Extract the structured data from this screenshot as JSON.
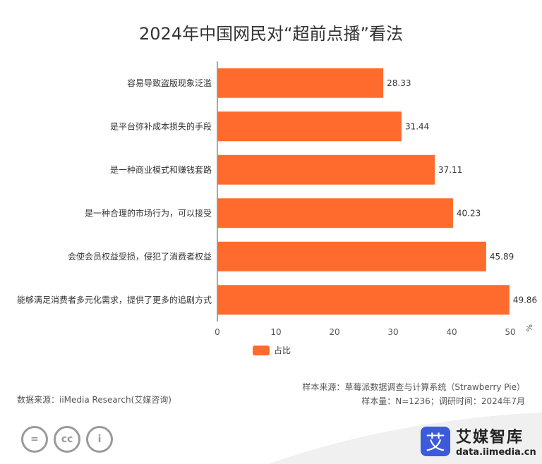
{
  "chart_data": {
    "type": "bar",
    "orientation": "horizontal",
    "title": "2024年中国网民对“超前点播”看法",
    "categories": [
      "容易导致盗版现象泛滥",
      "是平台弥补成本损失的手段",
      "是一种商业模式和赚钱套路",
      "是一种合理的市场行为，可以接受",
      "会使会员权益受损，侵犯了消费者权益",
      "能够满足消费者多元化需求，提供了更多的追剧方式"
    ],
    "series": [
      {
        "name": "占比",
        "values": [
          28.33,
          31.44,
          37.11,
          40.23,
          45.89,
          49.86
        ]
      }
    ],
    "value_labels": [
      "28.33",
      "31.44",
      "37.11",
      "40.23",
      "45.89",
      "49.86"
    ],
    "xlim": [
      0,
      50
    ],
    "xticks": [
      "0",
      "10",
      "20",
      "30",
      "40",
      "50"
    ],
    "x_unit": "%",
    "legend_position": "bottom-center",
    "bar_color": "#ff6b2c"
  },
  "source": {
    "sample_source": "样本来源：草莓派数据调查与计算系统（Strawberry Pie）",
    "sample_info": "样本量：N=1236；调研时间：2024年7月",
    "data_source": "数据来源：iiMedia Research(艾媒咨询)"
  },
  "brand": {
    "logo_char": "艾",
    "name": "艾媒智库",
    "url": "data.iimedia.cn"
  },
  "license_icons": [
    "equals-icon",
    "cc-icon",
    "person-icon"
  ],
  "license_glyphs": [
    "=",
    "cc",
    "i"
  ]
}
